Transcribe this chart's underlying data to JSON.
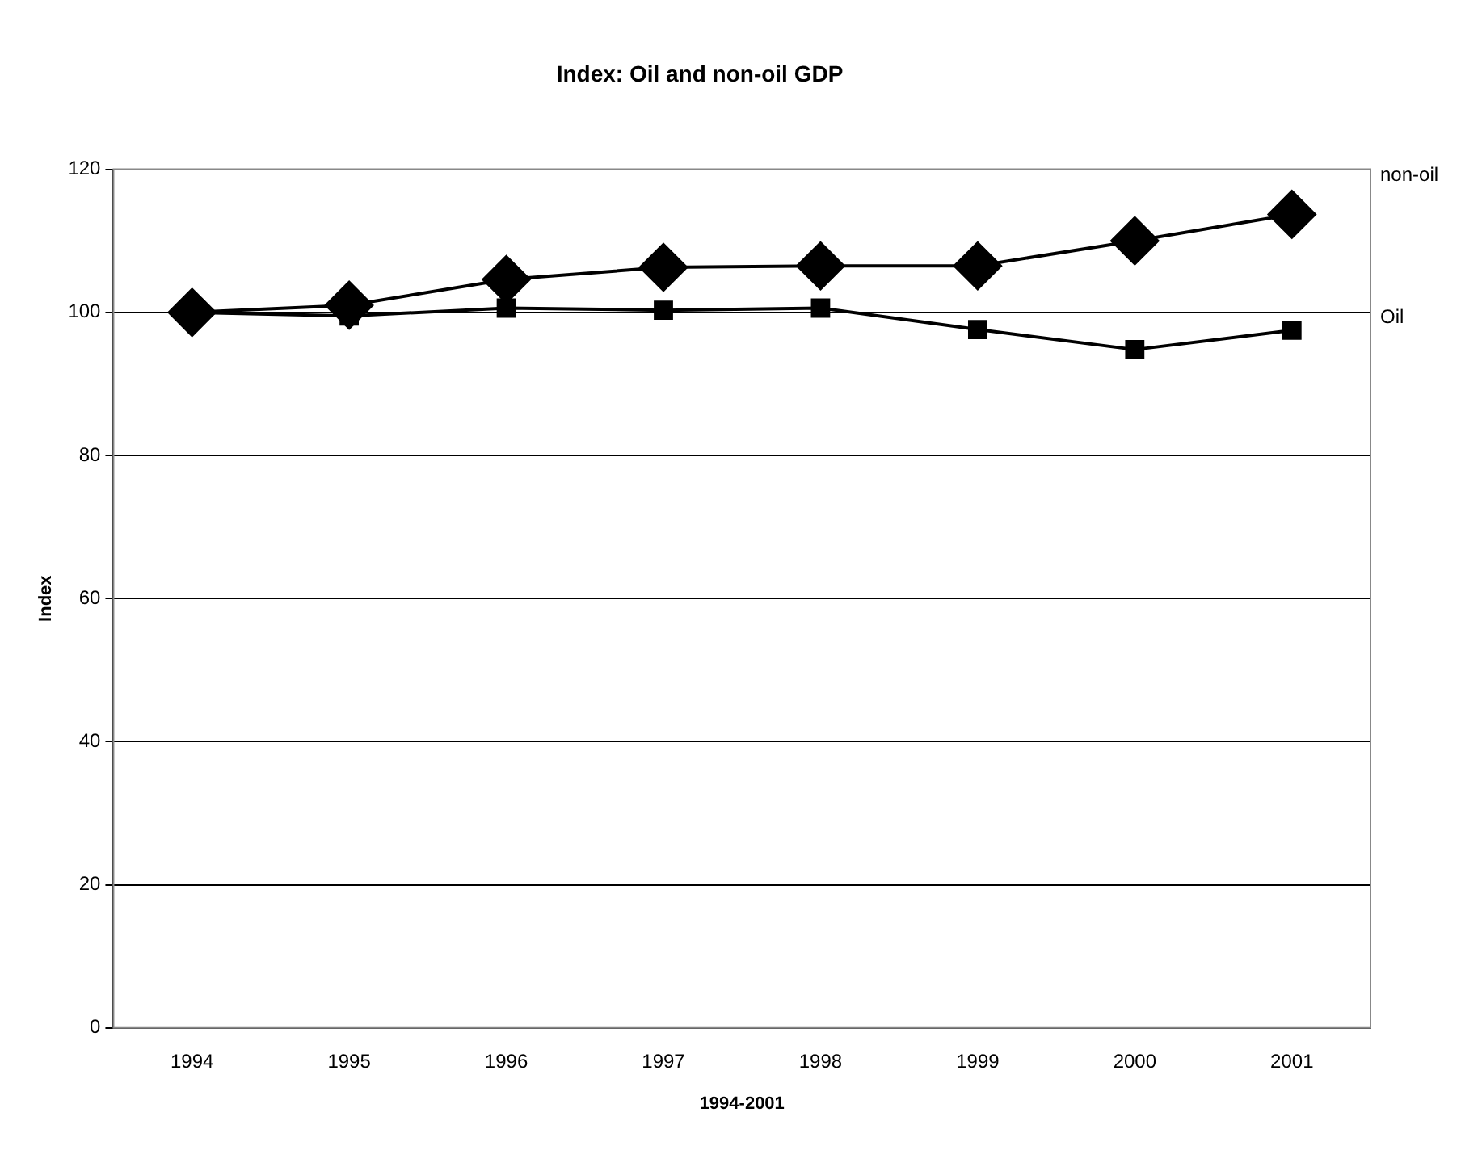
{
  "chart_data": {
    "type": "line",
    "title": "Index: Oil and non-oil GDP",
    "xlabel": "1994-2001",
    "ylabel": "Index",
    "categories": [
      "1994",
      "1995",
      "1996",
      "1997",
      "1998",
      "1999",
      "2000",
      "2001"
    ],
    "series": [
      {
        "name": "non-oil",
        "color": "#000000",
        "marker": "diamond",
        "values": [
          100,
          101,
          104.6,
          106.3,
          106.5,
          106.5,
          110,
          113.7
        ]
      },
      {
        "name": "Oil",
        "color": "#000000",
        "marker": "square",
        "values": [
          100,
          99.5,
          100.6,
          100.3,
          100.6,
          97.6,
          94.8,
          97.5
        ]
      }
    ],
    "ylim": [
      0,
      120
    ],
    "yticks": [
      0,
      20,
      40,
      60,
      80,
      100,
      120
    ],
    "grid": "y",
    "legend": false,
    "line_style": "solid"
  }
}
